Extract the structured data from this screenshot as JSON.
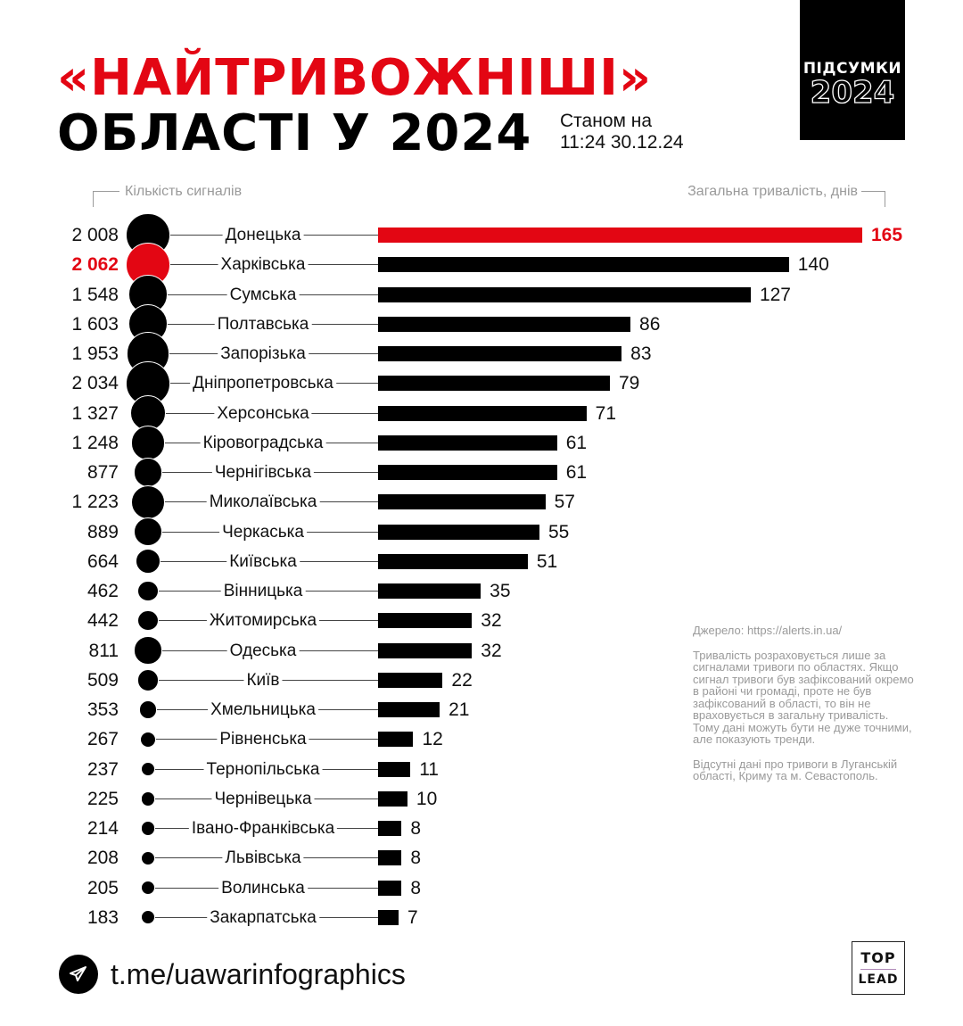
{
  "header": {
    "title_line1": "«НАЙТРИВОЖНІШІ»",
    "title_line2": "ОБЛАСТІ У 2024",
    "as_of_line1": "Станом на",
    "as_of_line2": "11:24 30.12.24"
  },
  "badge": {
    "line1": "ПІДСУМКИ",
    "line2": "2024"
  },
  "axes": {
    "left_label": "Кількість сигналів",
    "right_label": "Загальна тривалість, днів"
  },
  "colors": {
    "accent": "#e30613",
    "bar": "#000000",
    "muted_text": "#9a9a9a"
  },
  "rows": [
    {
      "region": "Донецька",
      "count": "2 008",
      "days": "165",
      "highlight_days": true,
      "highlight_count": false
    },
    {
      "region": "Харківська",
      "count": "2 062",
      "days": "140",
      "highlight_days": false,
      "highlight_count": true
    },
    {
      "region": "Сумська",
      "count": "1 548",
      "days": "127"
    },
    {
      "region": "Полтавська",
      "count": "1 603",
      "days": "86"
    },
    {
      "region": "Запорізька",
      "count": "1 953",
      "days": "83"
    },
    {
      "region": "Дніпропетровська",
      "count": "2 034",
      "days": "79"
    },
    {
      "region": "Херсонська",
      "count": "1 327",
      "days": "71"
    },
    {
      "region": "Кіровоградська",
      "count": "1 248",
      "days": "61"
    },
    {
      "region": "Чернігівська",
      "count": "877",
      "days": "61"
    },
    {
      "region": "Миколаївська",
      "count": "1 223",
      "days": "57"
    },
    {
      "region": "Черкаська",
      "count": "889",
      "days": "55"
    },
    {
      "region": "Київська",
      "count": "664",
      "days": "51"
    },
    {
      "region": "Вінницька",
      "count": "462",
      "days": "35"
    },
    {
      "region": "Житомирська",
      "count": "442",
      "days": "32"
    },
    {
      "region": "Одеська",
      "count": "811",
      "days": "32"
    },
    {
      "region": "Київ",
      "count": "509",
      "days": "22"
    },
    {
      "region": "Хмельницька",
      "count": "353",
      "days": "21"
    },
    {
      "region": "Рівненська",
      "count": "267",
      "days": "12"
    },
    {
      "region": "Тернопільська",
      "count": "237",
      "days": "11"
    },
    {
      "region": "Чернівецька",
      "count": "225",
      "days": "10"
    },
    {
      "region": "Івано-Франківська",
      "count": "214",
      "days": "8"
    },
    {
      "region": "Львівська",
      "count": "208",
      "days": "8"
    },
    {
      "region": "Волинська",
      "count": "205",
      "days": "8"
    },
    {
      "region": "Закарпатська",
      "count": "183",
      "days": "7"
    }
  ],
  "notes": {
    "source": "Джерело: https://alerts.in.ua/",
    "method": "Тривалість розраховується лише за сигналами тривоги по областях. Якщо сигнал тривоги був зафіксований окремо в районі чи громаді, проте не був зафіксований в області, то він не враховується в загальну тривалість. Тому дані можуть бути не дуже точними, але показують тренди.",
    "missing": "Відсутні дані про тривоги в Луганській області, Криму та м. Севастополь."
  },
  "footer": {
    "icon": "telegram-icon",
    "link": "t.me/uawarinfographics",
    "logo_top": "TOP",
    "logo_bottom": "LEAD"
  },
  "chart_data": {
    "type": "bar",
    "orientation": "horizontal",
    "title": "«НАЙТРИВОЖНІШІ» ОБЛАСТІ У 2024",
    "subtitle": "Станом на 11:24 30.12.24",
    "xlabel": "Загальна тривалість, днів",
    "secondary_label": "Кількість сигналів",
    "categories": [
      "Донецька",
      "Харківська",
      "Сумська",
      "Полтавська",
      "Запорізька",
      "Дніпропетровська",
      "Херсонська",
      "Кіровоградська",
      "Чернігівська",
      "Миколаївська",
      "Черкаська",
      "Київська",
      "Вінницька",
      "Житомирська",
      "Одеська",
      "Київ",
      "Хмельницька",
      "Рівненська",
      "Тернопільська",
      "Чернівецька",
      "Івано-Франківська",
      "Львівська",
      "Волинська",
      "Закарпатська"
    ],
    "series": [
      {
        "name": "Загальна тривалість, днів",
        "values": [
          165,
          140,
          127,
          86,
          83,
          79,
          71,
          61,
          61,
          57,
          55,
          51,
          35,
          32,
          32,
          22,
          21,
          12,
          11,
          10,
          8,
          8,
          8,
          7
        ]
      },
      {
        "name": "Кількість сигналів",
        "values": [
          2008,
          2062,
          1548,
          1603,
          1953,
          2034,
          1327,
          1248,
          877,
          1223,
          889,
          664,
          462,
          442,
          811,
          509,
          353,
          267,
          237,
          225,
          214,
          208,
          205,
          183
        ]
      }
    ],
    "xlim": [
      0,
      165
    ],
    "grid": false,
    "legend": "none",
    "highlights": {
      "max_duration": "Донецька",
      "max_count": "Харківська"
    },
    "annotations": [
      "Джерело: https://alerts.in.ua/",
      "Відсутні дані про тривоги в Луганській області, Криму та м. Севастополь."
    ]
  }
}
